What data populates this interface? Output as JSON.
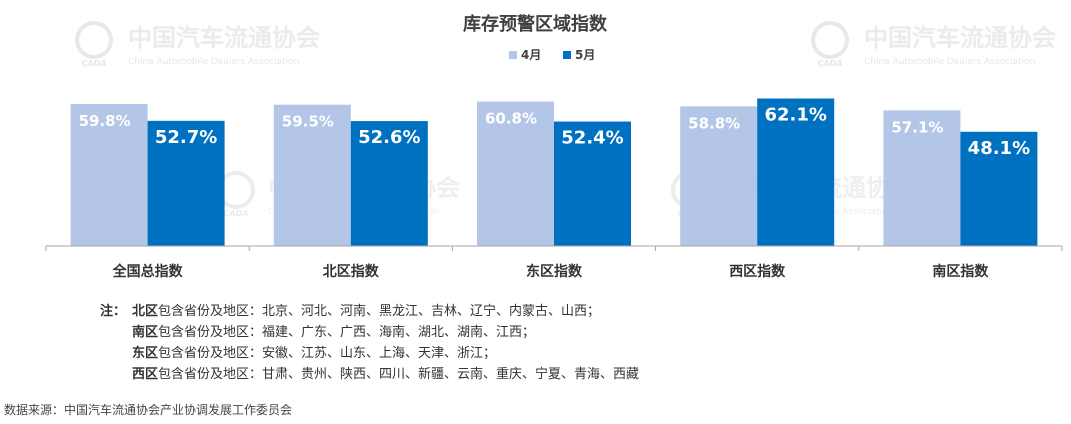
{
  "chart_data": {
    "type": "bar",
    "title": "库存预警区域指数",
    "categories": [
      "全国总指数",
      "北区指数",
      "东区指数",
      "西区指数",
      "南区指数"
    ],
    "series": [
      {
        "name": "4月",
        "color": "#b4c6e7",
        "values": [
          59.8,
          59.5,
          60.8,
          58.8,
          57.1
        ],
        "labels": [
          "59.8%",
          "59.5%",
          "60.8%",
          "58.8%",
          "57.1%"
        ]
      },
      {
        "name": "5月",
        "color": "#0070c0",
        "values": [
          52.7,
          52.6,
          52.4,
          62.1,
          48.1
        ],
        "labels": [
          "52.7%",
          "52.6%",
          "52.4%",
          "62.1%",
          "48.1%"
        ]
      }
    ],
    "legend": "top-center",
    "ylim": [
      0,
      64
    ],
    "grid": false,
    "xlabel": "",
    "ylabel": ""
  },
  "watermark": {
    "cn": "中国汽车流通协会",
    "en": "China Automobile Dealers Association",
    "logo_text": "CADA",
    "color": "#e6e6e6"
  },
  "notes": {
    "lead": "注：",
    "rows": [
      {
        "region": "北区",
        "text": "包含省份及地区：北京、河北、河南、黑龙江、吉林、辽宁、内蒙古、山西；"
      },
      {
        "region": "南区",
        "text": "包含省份及地区：福建、广东、广西、海南、湖北、湖南、江西；"
      },
      {
        "region": "东区",
        "text": "包含省份及地区：安徽、江苏、山东、上海、天津、浙江；"
      },
      {
        "region": "西区",
        "text": "包含省份及地区：甘肃、贵州、陕西、四川、新疆、云南、重庆、宁夏、青海、西藏"
      }
    ]
  },
  "source": "数据来源：中国汽车流通协会产业协调发展工作委员会"
}
